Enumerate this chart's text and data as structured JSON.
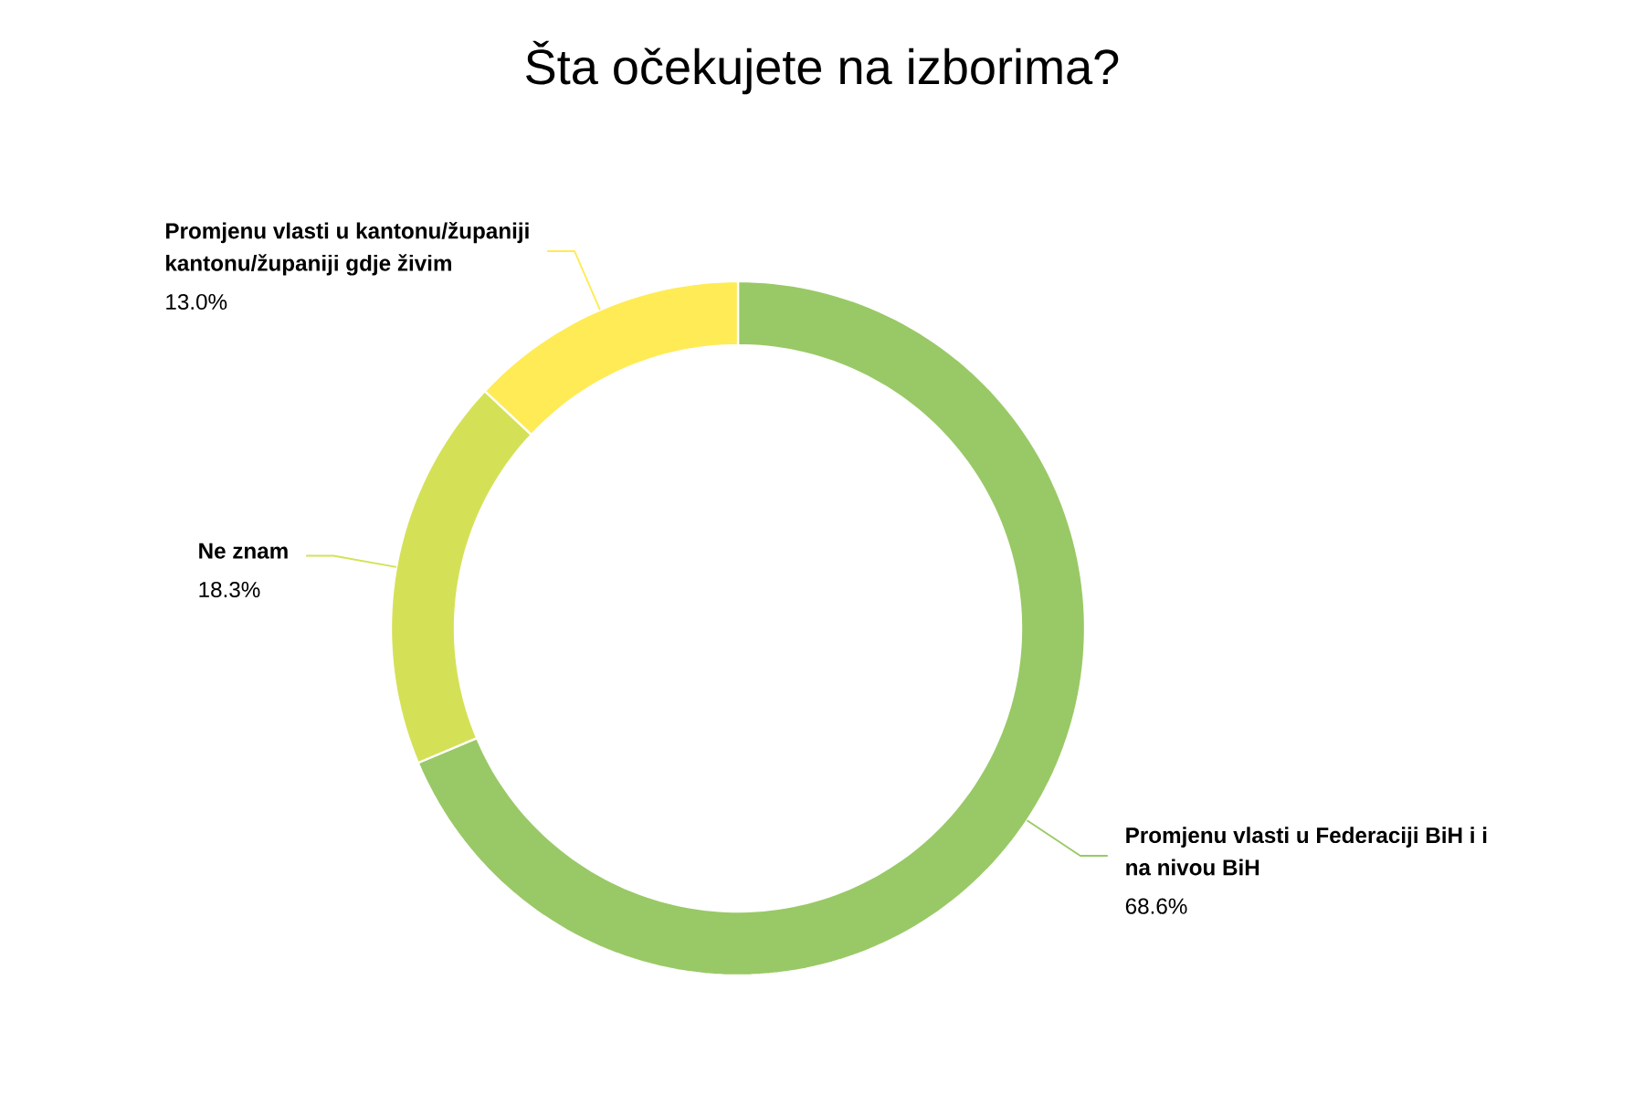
{
  "chart_data": {
    "type": "donut",
    "title": "Šta očekujete na izborima?",
    "categories": [
      "Promjenu vlasti u Federaciji BiH i i na nivou BiH",
      "Ne znam",
      "Promjenu vlasti u kantonu/županiji kantonu/županiji gdje živim"
    ],
    "values": [
      68.6,
      18.3,
      13.0
    ],
    "colors": [
      "#99c966",
      "#d4e157",
      "#ffeb55"
    ],
    "value_labels": [
      "68.6%",
      "18.3%",
      "13.0%"
    ]
  }
}
